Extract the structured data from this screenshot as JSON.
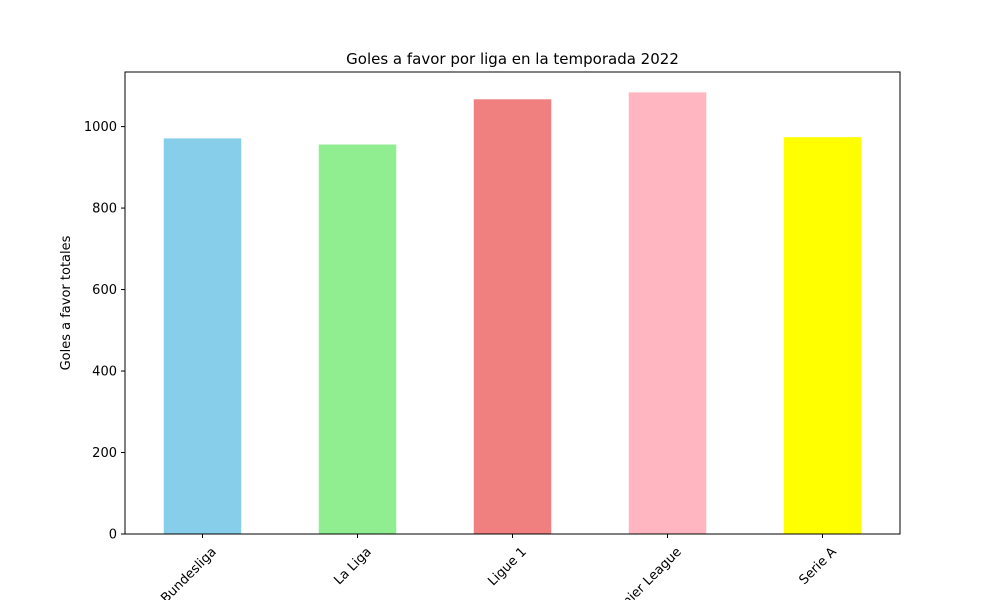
{
  "chart_data": {
    "type": "bar",
    "title": "Goles a favor por liga en la temporada 2022",
    "xlabel": "",
    "ylabel": "Goles a favor totales",
    "categories": [
      "Bundesliga",
      "La Liga",
      "Ligue 1",
      "Premier League",
      "Serie A"
    ],
    "values": [
      971,
      956,
      1067,
      1084,
      974
    ],
    "colors": [
      "#87ceeb",
      "#90ee90",
      "#f08080",
      "#ffb6c1",
      "#ffff00"
    ],
    "ylim": [
      0,
      1134
    ],
    "yticks": [
      0,
      200,
      400,
      600,
      800,
      1000
    ],
    "grid": false,
    "legend": "none"
  }
}
